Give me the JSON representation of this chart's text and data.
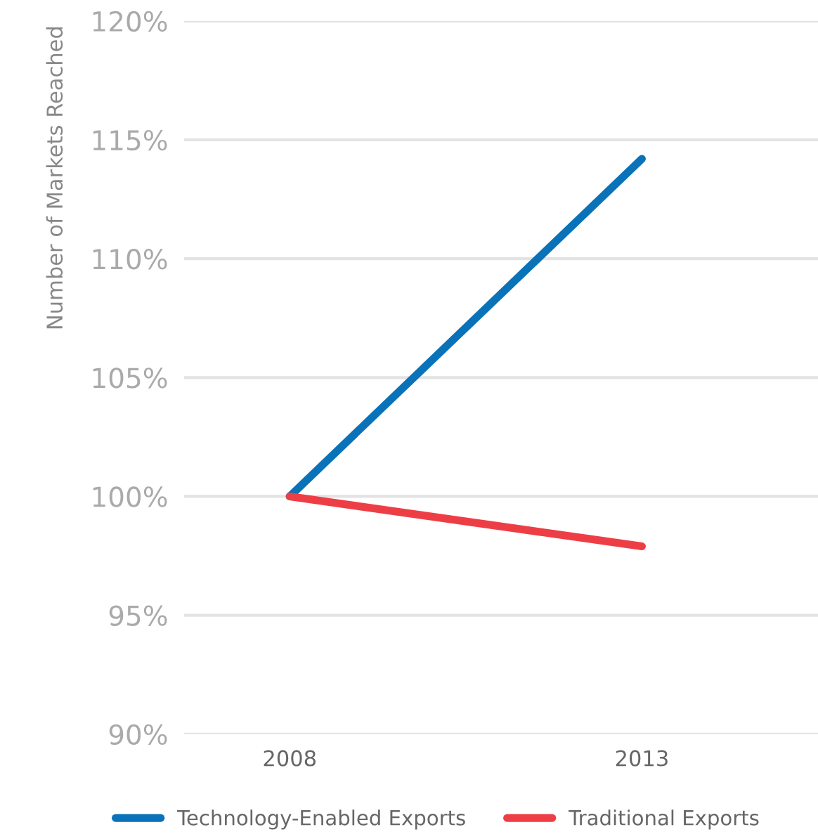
{
  "chart_data": {
    "type": "line",
    "ylabel": "Number of Markets Reached",
    "categories": [
      "2008",
      "2013"
    ],
    "series": [
      {
        "name": "Technology-Enabled Exports",
        "color": "#0a72b8",
        "values": [
          100,
          114.2
        ]
      },
      {
        "name": "Traditional Exports",
        "color": "#ee3e45",
        "values": [
          100,
          97.9
        ]
      }
    ],
    "ylim": [
      90,
      120
    ],
    "yticks": [
      {
        "value": 90,
        "label": "90%"
      },
      {
        "value": 95,
        "label": "95%"
      },
      {
        "value": 100,
        "label": "100%"
      },
      {
        "value": 105,
        "label": "105%"
      },
      {
        "value": 110,
        "label": "110%"
      },
      {
        "value": 115,
        "label": "115%"
      },
      {
        "value": 120,
        "label": "120%"
      }
    ],
    "grid": "y",
    "legend": "bottom",
    "marker": "none",
    "line_style": "solid"
  }
}
